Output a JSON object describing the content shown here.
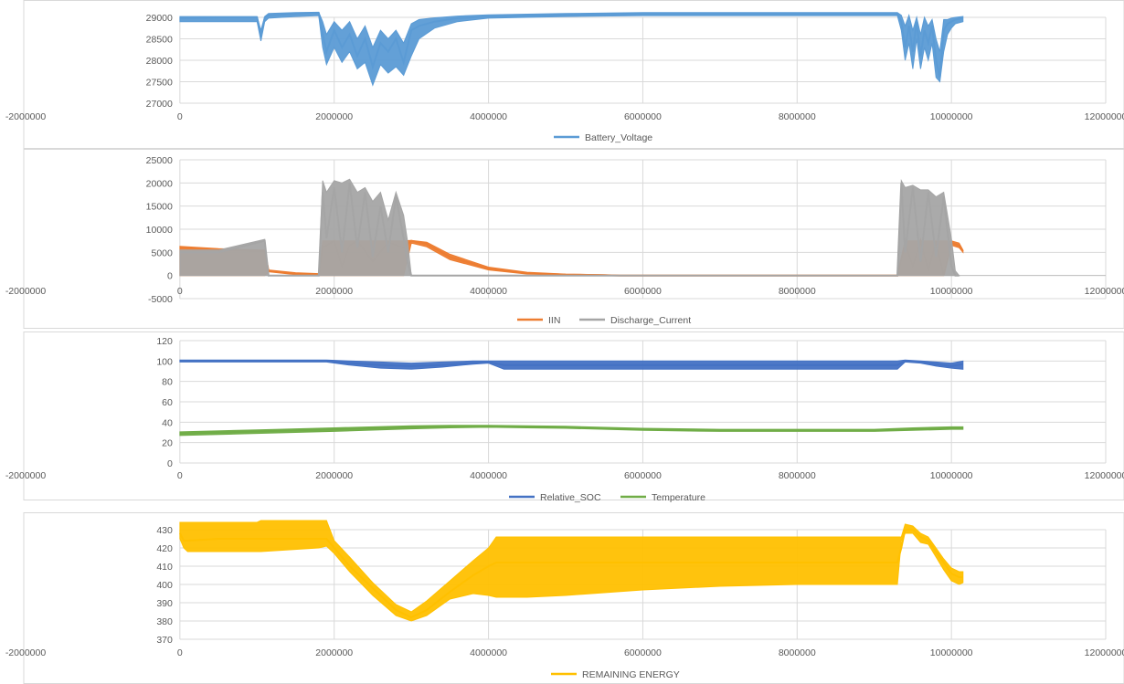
{
  "chart_data": [
    {
      "type": "scatter",
      "xlim": [
        -2000000,
        12000000
      ],
      "ylim": [
        27000,
        29000
      ],
      "x_ticks": [
        "-2000000",
        "0",
        "2000000",
        "4000000",
        "6000000",
        "8000000",
        "10000000",
        "12000000"
      ],
      "y_ticks": [
        "29000",
        "28500",
        "28000",
        "27500",
        "27000"
      ],
      "y_tick_values": [
        29000,
        28500,
        28000,
        27500,
        27000
      ],
      "grid": true,
      "legend": "bottom",
      "series": [
        {
          "name": "Battery_Voltage",
          "color": "#5b9bd5",
          "x": [
            0,
            500000,
            1000000,
            1050000,
            1100000,
            1150000,
            1500000,
            1800000,
            1850000,
            1900000,
            2000000,
            2100000,
            2200000,
            2300000,
            2400000,
            2500000,
            2600000,
            2700000,
            2800000,
            2900000,
            3000000,
            3100000,
            3300000,
            3600000,
            4000000,
            5000000,
            6000000,
            7000000,
            8000000,
            9000000,
            9300000,
            9350000,
            9400000,
            9450000,
            9500000,
            9550000,
            9600000,
            9650000,
            9700000,
            9750000,
            9800000,
            9850000,
            9900000,
            9950000,
            10000000,
            10050000,
            10150000
          ],
          "y": [
            28980,
            29000,
            29000,
            28550,
            28990,
            29050,
            29080,
            29100,
            28600,
            28200,
            28700,
            28300,
            28600,
            28100,
            28500,
            27850,
            28400,
            28200,
            28500,
            27950,
            28700,
            28800,
            28900,
            28980,
            29020,
            29060,
            29080,
            29080,
            29080,
            29080,
            29080,
            28900,
            28300,
            28800,
            28200,
            28900,
            28100,
            28700,
            28400,
            28800,
            28000,
            27600,
            28700,
            28850,
            28900,
            28950,
            28980
          ],
          "band_low": [
            28900,
            28900,
            28900,
            28450,
            28900,
            28980,
            29020,
            29040,
            28300,
            27900,
            28300,
            27950,
            28200,
            27800,
            27950,
            27420,
            27900,
            27700,
            27850,
            27650,
            28100,
            28500,
            28750,
            28900,
            28980,
            29020,
            29040,
            29040,
            29040,
            29040,
            29040,
            28700,
            28000,
            28400,
            27800,
            28500,
            27800,
            28300,
            28000,
            28400,
            27600,
            27500,
            28200,
            28600,
            28750,
            28850,
            28900
          ],
          "band_high": [
            29020,
            29020,
            29020,
            28700,
            29020,
            29090,
            29110,
            29120,
            28900,
            28600,
            28900,
            28700,
            28900,
            28500,
            28800,
            28300,
            28700,
            28500,
            28700,
            28400,
            28850,
            28950,
            28990,
            29030,
            29060,
            29090,
            29110,
            29110,
            29110,
            29110,
            29110,
            29050,
            28800,
            29050,
            28700,
            29000,
            28600,
            29000,
            28800,
            28950,
            28500,
            28200,
            28950,
            28950,
            28980,
            29000,
            29020
          ]
        }
      ]
    },
    {
      "type": "scatter",
      "xlim": [
        -2000000,
        12000000
      ],
      "ylim": [
        -5000,
        25000
      ],
      "x_ticks": [
        "-2000000",
        "0",
        "2000000",
        "4000000",
        "6000000",
        "8000000",
        "10000000",
        "12000000"
      ],
      "y_ticks": [
        "25000",
        "20000",
        "15000",
        "10000",
        "5000",
        "0",
        "-5000"
      ],
      "y_tick_values": [
        25000,
        20000,
        15000,
        10000,
        5000,
        0,
        -5000
      ],
      "grid": true,
      "legend": "bottom",
      "series": [
        {
          "name": "IIN",
          "color": "#ed7d31",
          "x": [
            0,
            500000,
            1100000,
            1150000,
            1500000,
            1800000,
            1850000,
            2000000,
            2100000,
            2200000,
            2300000,
            2500000,
            2700000,
            2900000,
            3000000,
            3200000,
            3500000,
            4000000,
            4500000,
            5000000,
            5500000,
            5700000,
            6000000,
            8000000,
            9300000,
            9400000,
            9500000,
            9600000,
            9700000,
            9800000,
            9900000,
            10000000,
            10100000,
            10150000
          ],
          "y": [
            6000,
            5500,
            5200,
            1000,
            400,
            200,
            6000,
            7500,
            2000,
            6500,
            7500,
            3000,
            7200,
            6000,
            7500,
            6800,
            4000,
            1500,
            500,
            200,
            100,
            0,
            0,
            0,
            0,
            7000,
            2000,
            7500,
            1000,
            7500,
            0,
            7000,
            6500,
            5200
          ],
          "band_low": [
            0,
            0,
            0,
            800,
            200,
            0,
            0,
            0,
            0,
            0,
            0,
            0,
            0,
            0,
            7000,
            6200,
            3400,
            1200,
            300,
            100,
            0,
            0,
            0,
            0,
            0,
            0,
            0,
            0,
            0,
            0,
            0,
            6500,
            6000,
            5000
          ],
          "band_high": [
            6300,
            5800,
            5500,
            1200,
            600,
            400,
            7500,
            7500,
            7500,
            7500,
            7500,
            7500,
            7500,
            7500,
            7600,
            7200,
            4600,
            1800,
            700,
            300,
            150,
            50,
            50,
            50,
            50,
            7500,
            7500,
            7500,
            7500,
            7500,
            7500,
            7500,
            7000,
            5500
          ]
        },
        {
          "name": "Discharge_Current",
          "color": "#a5a5a5",
          "x": [
            0,
            500000,
            1100000,
            1150000,
            1800000,
            1850000,
            1900000,
            2000000,
            2100000,
            2200000,
            2300000,
            2400000,
            2500000,
            2600000,
            2700000,
            2800000,
            2900000,
            2950000,
            3000000,
            5000000,
            9300000,
            9350000,
            9400000,
            9500000,
            9600000,
            9700000,
            9800000,
            9900000,
            10000000,
            10050000,
            10100000
          ],
          "y": [
            5000,
            5000,
            7500,
            0,
            0,
            18000,
            8000,
            19000,
            5000,
            20000,
            6000,
            18000,
            4000,
            15000,
            5000,
            17000,
            8000,
            3000,
            0,
            0,
            0,
            20000,
            5000,
            19000,
            3000,
            18000,
            4000,
            17000,
            2000,
            0,
            0
          ],
          "band_low": [
            0,
            0,
            0,
            0,
            0,
            0,
            0,
            0,
            0,
            0,
            0,
            0,
            0,
            0,
            0,
            0,
            0,
            0,
            0,
            0,
            0,
            0,
            0,
            0,
            0,
            0,
            0,
            0,
            0,
            0,
            0
          ],
          "band_high": [
            5500,
            5500,
            7800,
            0,
            0,
            20500,
            18000,
            20500,
            20000,
            20800,
            18000,
            19000,
            16000,
            18000,
            12000,
            18000,
            13000,
            7500,
            0,
            0,
            0,
            20500,
            19000,
            19500,
            18500,
            18500,
            17000,
            18000,
            8000,
            1000,
            0
          ]
        }
      ]
    },
    {
      "type": "scatter",
      "xlim": [
        -2000000,
        12000000
      ],
      "ylim": [
        0,
        120
      ],
      "x_ticks": [
        "-2000000",
        "0",
        "2000000",
        "4000000",
        "6000000",
        "8000000",
        "10000000",
        "12000000"
      ],
      "y_ticks": [
        "120",
        "100",
        "80",
        "60",
        "40",
        "20",
        "0"
      ],
      "y_tick_values": [
        120,
        100,
        80,
        60,
        40,
        20,
        0
      ],
      "grid": true,
      "legend": "bottom",
      "series": [
        {
          "name": "Relative_SOC",
          "color": "#4472c4",
          "x": [
            0,
            1000000,
            1900000,
            2200000,
            2600000,
            3000000,
            3400000,
            3800000,
            4000000,
            4200000,
            5000000,
            6000000,
            7000000,
            8000000,
            9000000,
            9300000,
            9400000,
            9600000,
            9800000,
            10000000,
            10150000
          ],
          "y": [
            100,
            100,
            100,
            98,
            96,
            95,
            96,
            98,
            99,
            96,
            96,
            96,
            96,
            96,
            96,
            96,
            100,
            99,
            97,
            95,
            97
          ],
          "band_low": [
            99,
            99,
            99,
            96,
            93,
            92,
            94,
            97,
            98,
            92,
            92,
            92,
            92,
            92,
            92,
            92,
            99,
            98,
            95,
            93,
            92
          ],
          "band_high": [
            101,
            101,
            101,
            100,
            99,
            98,
            99,
            100,
            100,
            100,
            100,
            100,
            100,
            100,
            100,
            100,
            101,
            100,
            99,
            98,
            100
          ]
        },
        {
          "name": "Temperature",
          "color": "#70ad47",
          "x": [
            0,
            1000000,
            2000000,
            3000000,
            3500000,
            4000000,
            4500000,
            5000000,
            6000000,
            7000000,
            8000000,
            9000000,
            9500000,
            10000000,
            10150000
          ],
          "y": [
            29,
            31,
            33,
            35,
            36,
            36,
            35.5,
            35,
            33,
            32,
            32,
            32,
            33,
            34,
            34
          ],
          "band_low": [
            27,
            29,
            31,
            33.5,
            34.5,
            35,
            34.5,
            34,
            32,
            31,
            31,
            31,
            32,
            33,
            33
          ],
          "band_high": [
            30.5,
            32.5,
            34.5,
            36.5,
            37,
            37,
            36.5,
            36,
            34,
            33,
            33,
            33,
            34.5,
            35.5,
            35.5
          ]
        }
      ]
    },
    {
      "type": "scatter",
      "xlim": [
        -2000000,
        12000000
      ],
      "ylim": [
        370,
        430
      ],
      "x_ticks": [
        "-2000000",
        "0",
        "2000000",
        "4000000",
        "6000000",
        "8000000",
        "10000000",
        "12000000"
      ],
      "y_ticks": [
        "430",
        "420",
        "410",
        "400",
        "390",
        "380",
        "370"
      ],
      "y_tick_values": [
        430,
        420,
        410,
        400,
        390,
        380,
        370
      ],
      "grid": true,
      "legend": "bottom",
      "series": [
        {
          "name": "REMAINING ENERGY",
          "color": "#ffc000",
          "x": [
            0,
            50000,
            100000,
            500000,
            1000000,
            1050000,
            1800000,
            1900000,
            2000000,
            2200000,
            2500000,
            2800000,
            3000000,
            3200000,
            3500000,
            3800000,
            4000000,
            4100000,
            4500000,
            5000000,
            6000000,
            7000000,
            8000000,
            9000000,
            9300000,
            9350000,
            9400000,
            9500000,
            9600000,
            9700000,
            9800000,
            9900000,
            10000000,
            10100000,
            10150000
          ],
          "y": [
            428,
            424,
            424,
            425,
            425,
            425,
            425,
            425,
            420,
            410,
            398,
            386,
            382,
            386,
            396,
            405,
            410,
            412,
            412,
            412,
            412,
            412,
            412,
            412,
            412,
            420,
            430,
            430,
            426,
            424,
            418,
            412,
            406,
            404,
            404
          ],
          "band_low": [
            425,
            420,
            418,
            418,
            418,
            418,
            420,
            421,
            417,
            407,
            394,
            383,
            380,
            383,
            392,
            395,
            394,
            393,
            393,
            394,
            397,
            399,
            400,
            400,
            400,
            424,
            428,
            428,
            423,
            422,
            415,
            408,
            402,
            400,
            401
          ],
          "band_high": [
            434,
            434,
            434,
            434,
            434,
            435,
            435,
            435,
            424,
            415,
            401,
            389,
            385,
            391,
            402,
            413,
            420,
            426,
            426,
            426,
            426,
            426,
            426,
            426,
            426,
            426,
            433,
            432,
            428,
            426,
            420,
            414,
            409,
            407,
            407
          ]
        }
      ]
    }
  ]
}
